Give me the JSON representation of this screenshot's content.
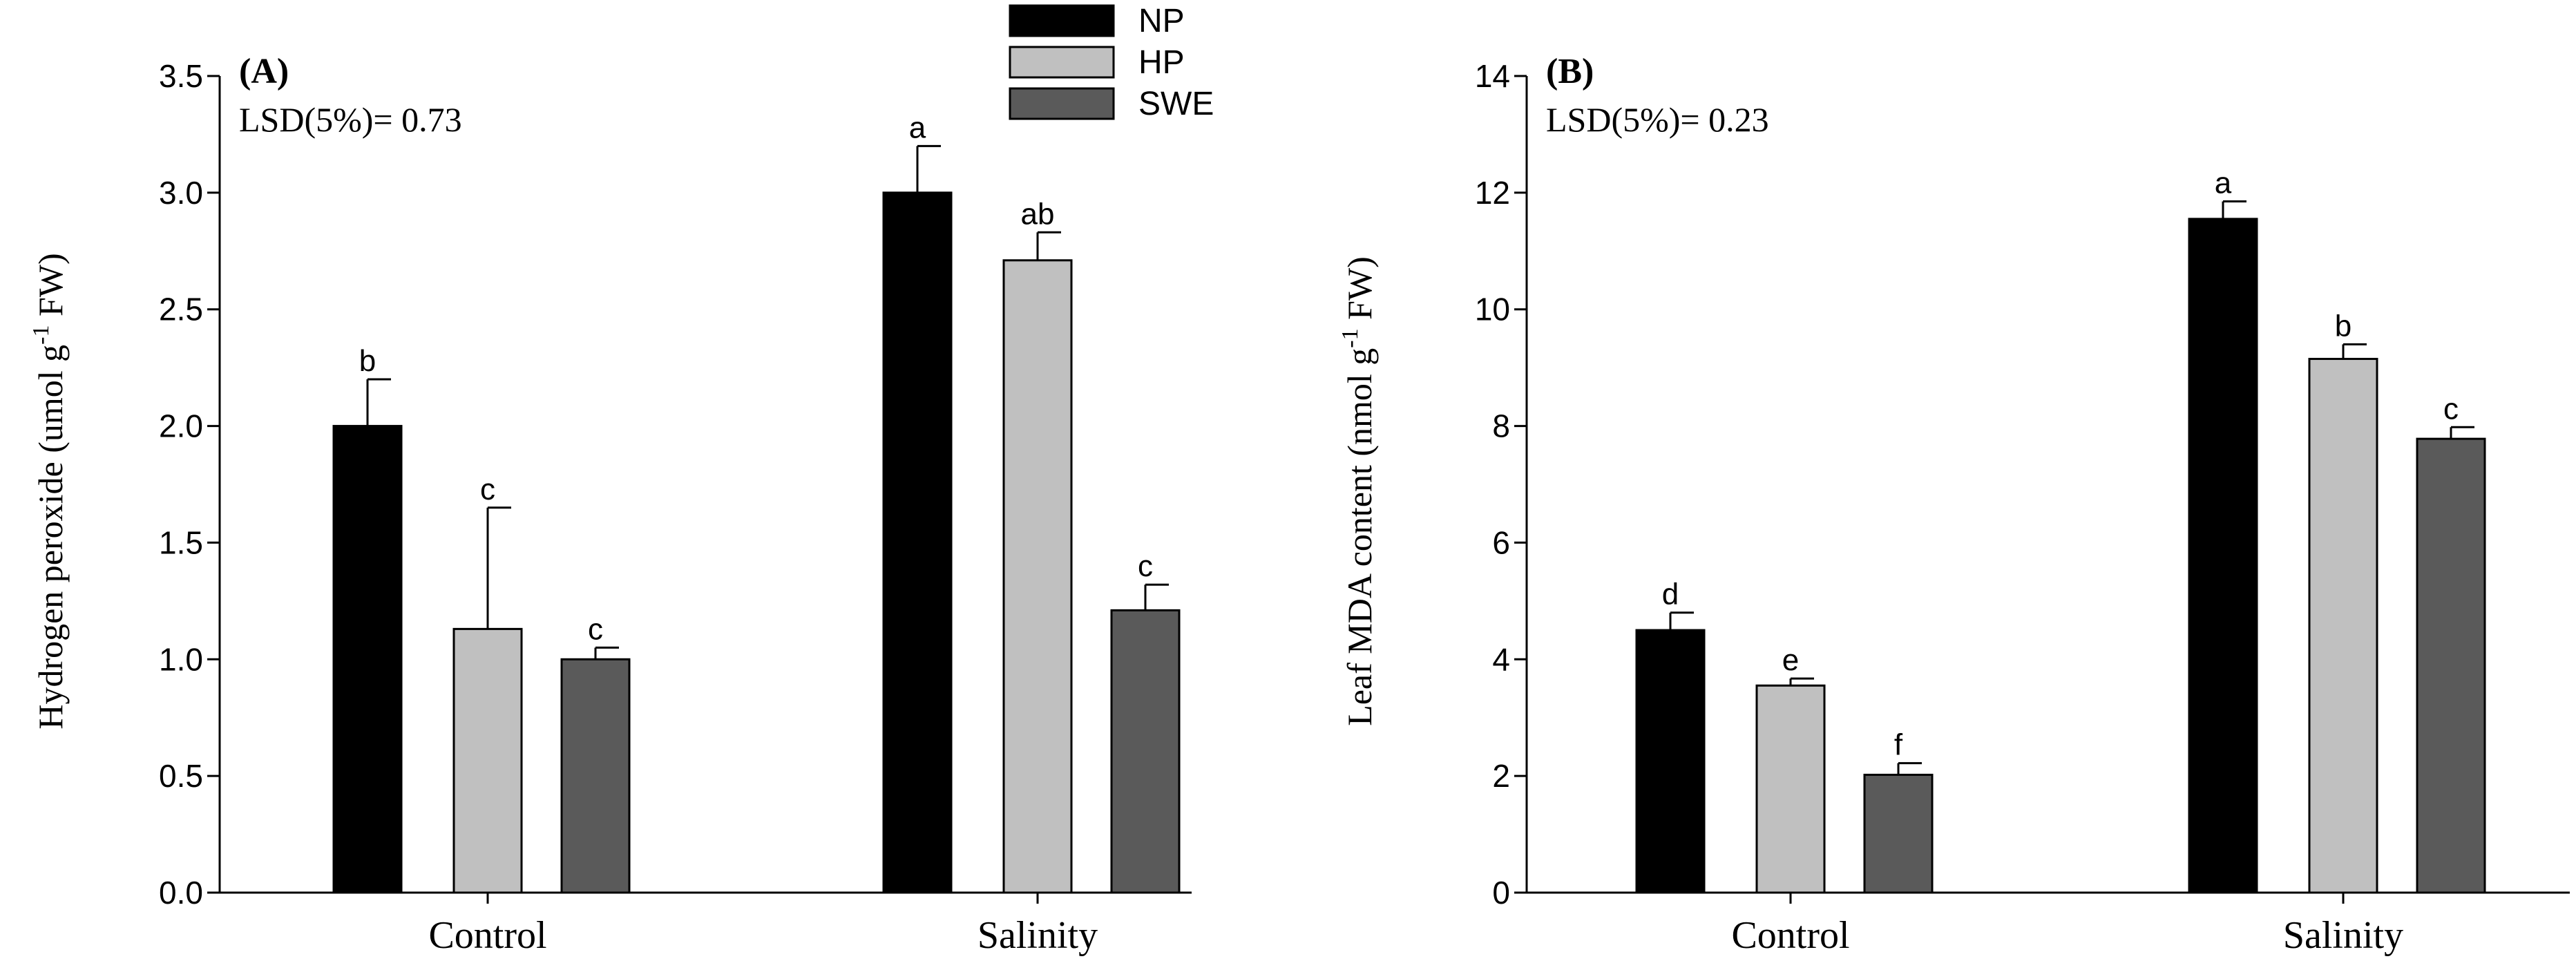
{
  "legend": [
    {
      "name": "NP",
      "color": "#000000"
    },
    {
      "name": "HP",
      "color": "#c0c0c0"
    },
    {
      "name": "SWE",
      "color": "#5a5a5a"
    }
  ],
  "chart_data": [
    {
      "type": "bar",
      "panel_label": "(A)",
      "annotation": "LSD(5%)= 0.73",
      "ylabel": "Hydrogen peroxide (umol g-1 FW)",
      "ylabel_parts": {
        "main": "Hydrogen peroxide (umol g",
        "sup": "-1",
        "tail": " FW)"
      },
      "xlabel": "",
      "categories": [
        "Control",
        "Salinity"
      ],
      "ylim": [
        0,
        3.5
      ],
      "yticks": [
        0,
        0.5,
        1,
        1.5,
        2,
        2.5,
        3,
        3.5
      ],
      "ytick_labels": [
        "0.0",
        "0.5",
        "1.0",
        "1.5",
        "2.0",
        "2.5",
        "3.0",
        "3.5"
      ],
      "series": [
        {
          "name": "NP",
          "values": [
            2.0,
            3.0
          ],
          "errors": [
            0.2,
            0.2
          ],
          "letters": [
            "b",
            "a"
          ]
        },
        {
          "name": "HP",
          "values": [
            1.13,
            2.71
          ],
          "errors": [
            0.52,
            0.12
          ],
          "letters": [
            "c",
            "ab"
          ]
        },
        {
          "name": "SWE",
          "values": [
            1.0,
            1.21
          ],
          "errors": [
            0.05,
            0.11
          ],
          "letters": [
            "c",
            "c"
          ]
        }
      ],
      "legend_location": "top-right"
    },
    {
      "type": "bar",
      "panel_label": "(B)",
      "annotation": "LSD(5%)= 0.23",
      "ylabel": "Leaf MDA content (nmol g-1 FW)",
      "ylabel_parts": {
        "main": "Leaf MDA content (nmol g",
        "sup": "-1",
        "tail": " FW)"
      },
      "xlabel": "",
      "categories": [
        "Control",
        "Salinity"
      ],
      "ylim": [
        0,
        14
      ],
      "yticks": [
        0,
        2,
        4,
        6,
        8,
        10,
        12,
        14
      ],
      "ytick_labels": [
        "0",
        "2",
        "4",
        "6",
        "8",
        "10",
        "12",
        "14"
      ],
      "series": [
        {
          "name": "NP",
          "values": [
            4.5,
            11.55
          ],
          "errors": [
            0.3,
            0.3
          ],
          "letters": [
            "d",
            "a"
          ]
        },
        {
          "name": "HP",
          "values": [
            3.55,
            9.15
          ],
          "errors": [
            0.12,
            0.25
          ],
          "letters": [
            "e",
            "b"
          ]
        },
        {
          "name": "SWE",
          "values": [
            2.02,
            7.78
          ],
          "errors": [
            0.2,
            0.2
          ],
          "letters": [
            "f",
            "c"
          ]
        }
      ]
    }
  ]
}
